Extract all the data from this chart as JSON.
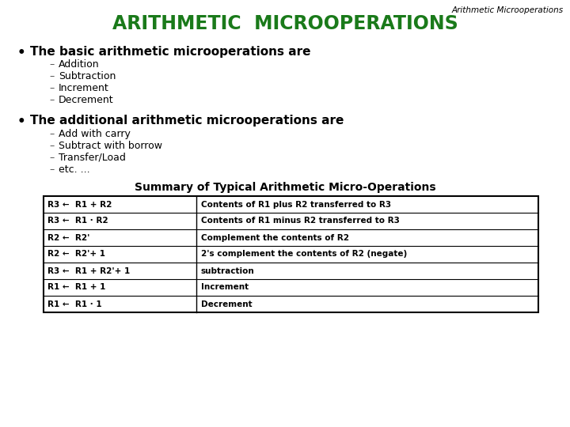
{
  "background_color": "#ffffff",
  "header_italic": "Arithmetic Microoperations",
  "header_italic_color": "#000000",
  "header_italic_fontsize": 7.5,
  "title": "ARITHMETIC  MICROOPERATIONS",
  "title_color": "#1a7a1a",
  "title_fontsize": 17,
  "bullet1": "The basic arithmetic microoperations are",
  "bullet1_color": "#000000",
  "bullet1_fontsize": 11,
  "sub1": [
    "Addition",
    "Subtraction",
    "Increment",
    "Decrement"
  ],
  "bullet2": "The additional arithmetic microoperations are",
  "bullet2_color": "#000000",
  "bullet2_fontsize": 11,
  "sub2": [
    "Add with carry",
    "Subtract with borrow",
    "Transfer/Load",
    "etc. ..."
  ],
  "table_title": "Summary of Typical Arithmetic Micro-Operations",
  "table_title_fontsize": 10,
  "table_rows": [
    [
      "R3 ←  R1 + R2",
      "Contents of R1 plus R2 transferred to R3"
    ],
    [
      "R3 ←  R1 · R2",
      "Contents of R1 minus R2 transferred to R3"
    ],
    [
      "R2 ←  R2'",
      "Complement the contents of R2"
    ],
    [
      "R2 ←  R2'+ 1",
      "2's complement the contents of R2 (negate)"
    ],
    [
      "R3 ←  R1 + R2'+ 1",
      "subtraction"
    ],
    [
      "R1 ←  R1 + 1",
      "Increment"
    ],
    [
      "R1 ←  R1 · 1",
      "Decrement"
    ]
  ],
  "table_fontsize": 7.5,
  "sub_fontsize": 9,
  "sub_color": "#000000",
  "dash_color": "#555555"
}
